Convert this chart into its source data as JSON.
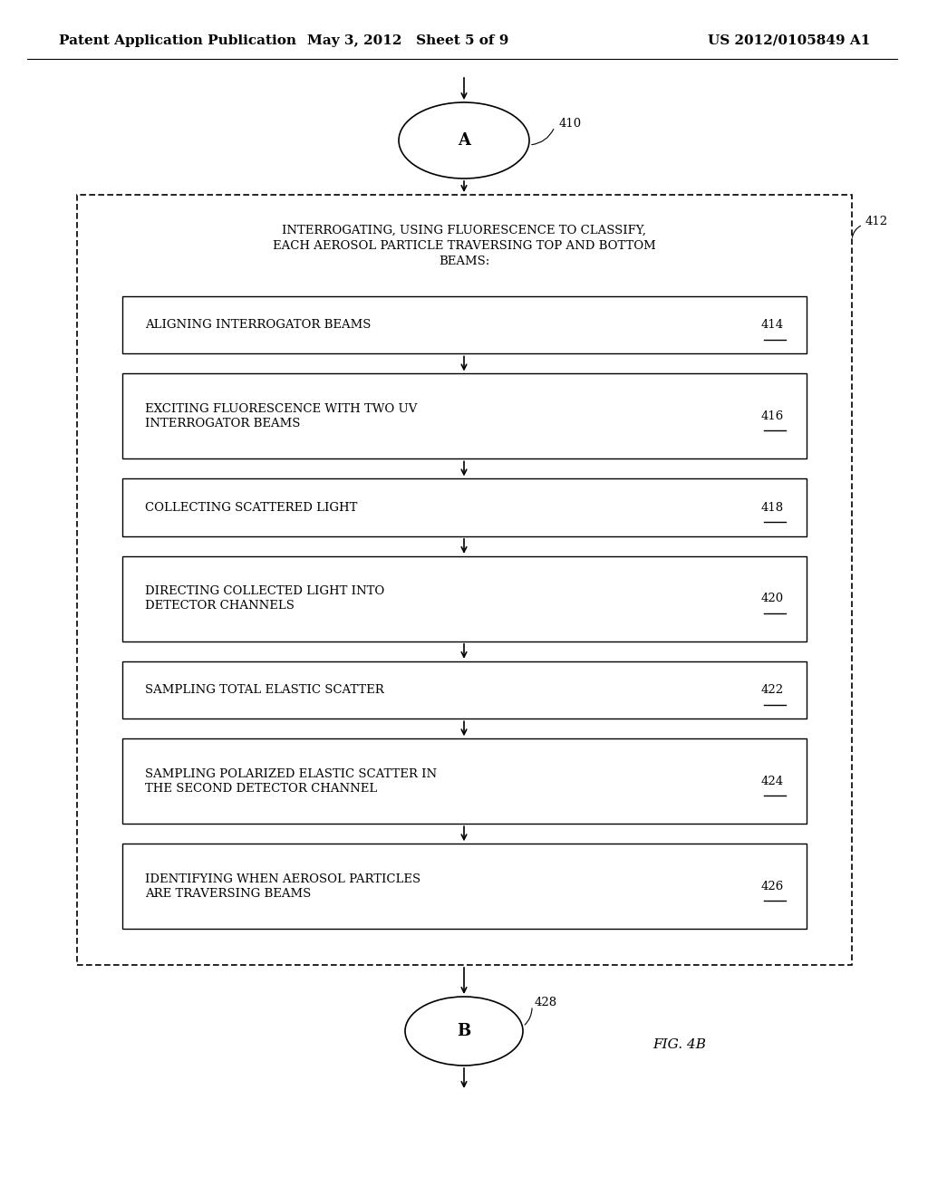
{
  "bg_color": "#ffffff",
  "header_left": "Patent Application Publication",
  "header_mid": "May 3, 2012   Sheet 5 of 9",
  "header_right": "US 2012/0105849 A1",
  "fig_label": "FIG. 4B",
  "node_A": {
    "label": "A",
    "ref": "410"
  },
  "node_B": {
    "label": "B",
    "ref": "428"
  },
  "outer_box_label": "412",
  "outer_box_title": "INTERROGATING, USING FLUORESCENCE TO CLASSIFY,\nEACH AEROSOL PARTICLE TRAVERSING TOP AND BOTTOM\nBEAMS:",
  "steps": [
    {
      "text": "ALIGNING INTERROGATOR BEAMS",
      "ref": "414"
    },
    {
      "text": "EXCITING FLUORESCENCE WITH TWO UV\nINTERROGATOR BEAMS",
      "ref": "416"
    },
    {
      "text": "COLLECTING SCATTERED LIGHT",
      "ref": "418"
    },
    {
      "text": "DIRECTING COLLECTED LIGHT INTO\nDETECTOR CHANNELS",
      "ref": "420"
    },
    {
      "text": "SAMPLING TOTAL ELASTIC SCATTER",
      "ref": "422"
    },
    {
      "text": "SAMPLING POLARIZED ELASTIC SCATTER IN\nTHE SECOND DETECTOR CHANNEL",
      "ref": "424"
    },
    {
      "text": "IDENTIFYING WHEN AEROSOL PARTICLES\nARE TRAVERSING BEAMS",
      "ref": "426"
    }
  ],
  "font_size_header": 11,
  "font_size_step": 9.5,
  "font_size_outer": 9.5,
  "font_size_ref": 9.5,
  "font_size_node": 13,
  "font_size_fig": 11
}
